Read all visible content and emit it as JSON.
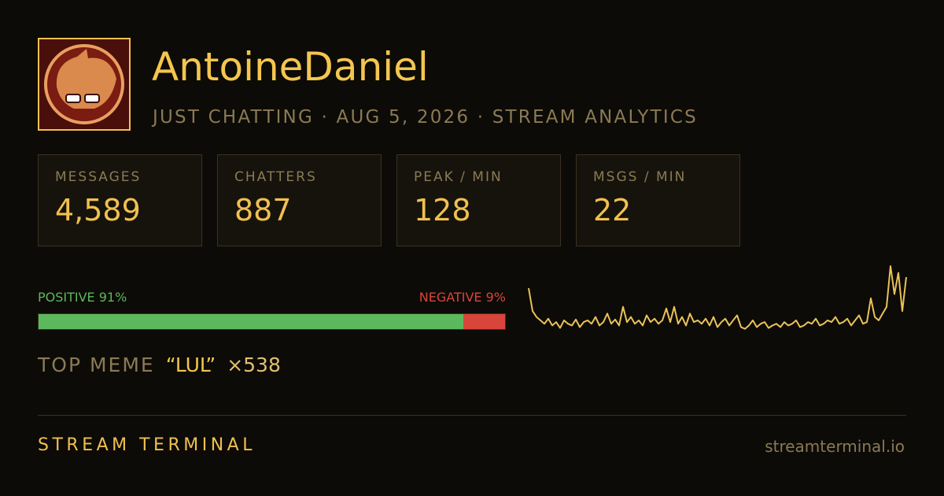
{
  "header": {
    "channel": "AntoineDaniel",
    "subtitle": "JUST CHATTING · AUG 5, 2026 · STREAM ANALYTICS"
  },
  "stats": [
    {
      "label": "MESSAGES",
      "value": "4,589"
    },
    {
      "label": "CHATTERS",
      "value": "887"
    },
    {
      "label": "PEAK / MIN",
      "value": "128"
    },
    {
      "label": "MSGS / MIN",
      "value": "22"
    }
  ],
  "sentiment": {
    "positive_label": "POSITIVE 91%",
    "positive": 91,
    "negative_label": "NEGATIVE 9%",
    "negative": 9,
    "positive_color": "#5cb85c",
    "negative_color": "#d9453a"
  },
  "sparkline": {
    "color": "#e9c25a",
    "values": [
      52,
      25,
      18,
      14,
      10,
      16,
      8,
      12,
      5,
      14,
      10,
      8,
      15,
      6,
      12,
      14,
      10,
      18,
      8,
      12,
      22,
      10,
      15,
      8,
      30,
      12,
      18,
      10,
      14,
      8,
      20,
      12,
      16,
      10,
      14,
      28,
      12,
      30,
      10,
      18,
      8,
      22,
      12,
      14,
      10,
      16,
      8,
      18,
      6,
      12,
      16,
      8,
      14,
      20,
      6,
      4,
      8,
      14,
      6,
      10,
      12,
      5,
      8,
      10,
      6,
      12,
      8,
      10,
      14,
      6,
      8,
      12,
      10,
      16,
      8,
      10,
      14,
      12,
      18,
      10,
      12,
      16,
      8,
      14,
      20,
      10,
      12,
      40,
      18,
      14,
      22,
      30,
      78,
      45,
      70,
      25,
      65
    ]
  },
  "top_meme": {
    "label": "TOP MEME",
    "meme": "“LUL”",
    "count": "×538"
  },
  "footer": {
    "brand": "STREAM TERMINAL",
    "url": "streamterminal.io"
  }
}
